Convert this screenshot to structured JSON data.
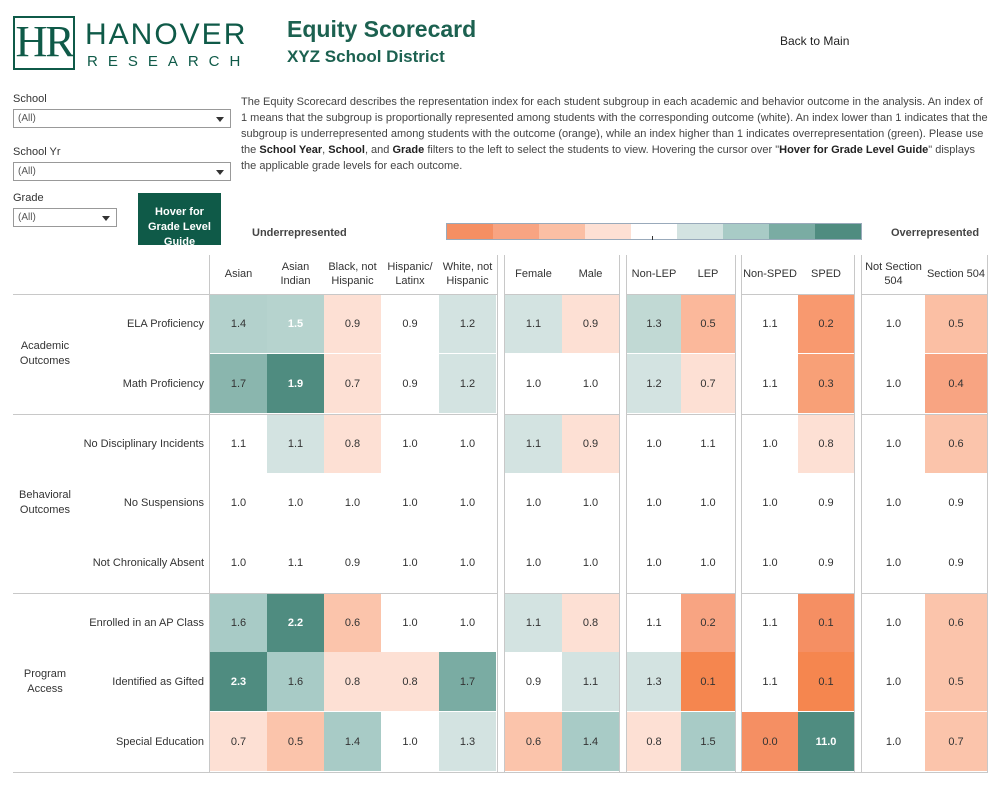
{
  "logo": {
    "letters": "HR",
    "word1": "HANOVER",
    "word2": "RESEARCH"
  },
  "header": {
    "title": "Equity Scorecard",
    "subtitle": "XYZ School District",
    "back_link": "Back to Main"
  },
  "filters": {
    "school": {
      "label": "School",
      "value": "(All)"
    },
    "school_yr": {
      "label": "School Yr",
      "value": "(All)"
    },
    "grade": {
      "label": "Grade",
      "value": "(All)"
    }
  },
  "grade_guide_button": "Hover for Grade Level Guide",
  "description": {
    "part1": "The Equity Scorecard describes the representation index for each student subgroup in each academic and behavior outcome in the analysis. An index of 1 means that the subgroup is proportionally represented among students with the corresponding outcome (white). An index lower than 1 indicates that the subgroup is underrepresented among students with the outcome (orange), while an index higher than 1 indicates overrepresentation (green). Please use the ",
    "b1": "School Year",
    "sep1": ", ",
    "b2": "School",
    "sep2": ", and ",
    "b3": "Grade",
    "part2": " filters to the left to select the students to view. Hovering the cursor over \"",
    "b4": "Hover for Grade Level Guide",
    "part3": "\" displays the applicable grade levels for each outcome."
  },
  "legend": {
    "left_label": "Underrepresented",
    "right_label": "Overrepresented",
    "colors": [
      "#f58f63",
      "#f8a482",
      "#fbbfa4",
      "#fde0d4",
      "#ffffff",
      "#d3e3e1",
      "#a8cbc6",
      "#7aaca3",
      "#4f8c80"
    ]
  },
  "columns": [
    "Asian",
    "Asian Indian",
    "Black, not Hispanic",
    "Hispanic/ Latinx",
    "White, not Hispanic",
    "Female",
    "Male",
    "Non-LEP",
    "LEP",
    "Non-SPED",
    "SPED",
    "Not Section 504",
    "Section 504"
  ],
  "groups": [
    {
      "label": "Academic Outcomes",
      "rows": [
        {
          "label": "ELA Proficiency",
          "values": [
            "1.4",
            "1.5",
            "0.9",
            "0.9",
            "1.2",
            "1.1",
            "0.9",
            "1.3",
            "0.5",
            "1.1",
            "0.2",
            "1.0",
            "0.5"
          ]
        },
        {
          "label": "Math Proficiency",
          "values": [
            "1.7",
            "1.9",
            "0.7",
            "0.9",
            "1.2",
            "1.0",
            "1.0",
            "1.2",
            "0.7",
            "1.1",
            "0.3",
            "1.0",
            "0.4"
          ]
        }
      ]
    },
    {
      "label": "Behavioral Outcomes",
      "rows": [
        {
          "label": "No Disciplinary Incidents",
          "values": [
            "1.1",
            "1.1",
            "0.8",
            "1.0",
            "1.0",
            "1.1",
            "0.9",
            "1.0",
            "1.1",
            "1.0",
            "0.8",
            "1.0",
            "0.6"
          ]
        },
        {
          "label": "No Suspensions",
          "values": [
            "1.0",
            "1.0",
            "1.0",
            "1.0",
            "1.0",
            "1.0",
            "1.0",
            "1.0",
            "1.0",
            "1.0",
            "0.9",
            "1.0",
            "0.9"
          ]
        },
        {
          "label": "Not Chronically Absent",
          "values": [
            "1.0",
            "1.1",
            "0.9",
            "1.0",
            "1.0",
            "1.0",
            "1.0",
            "1.0",
            "1.0",
            "1.0",
            "0.9",
            "1.0",
            "0.9"
          ]
        }
      ]
    },
    {
      "label": "Program Access",
      "rows": [
        {
          "label": "Enrolled in an AP Class",
          "values": [
            "1.6",
            "2.2",
            "0.6",
            "1.0",
            "1.0",
            "1.1",
            "0.8",
            "1.1",
            "0.2",
            "1.1",
            "0.1",
            "1.0",
            "0.6"
          ]
        },
        {
          "label": "Identified as Gifted",
          "values": [
            "2.3",
            "1.6",
            "0.8",
            "0.8",
            "1.7",
            "0.9",
            "1.1",
            "1.3",
            "0.1",
            "1.1",
            "0.1",
            "1.0",
            "0.5"
          ]
        },
        {
          "label": "Special Education",
          "values": [
            "0.7",
            "0.5",
            "1.4",
            "1.0",
            "1.3",
            "0.6",
            "1.4",
            "0.8",
            "1.5",
            "0.0",
            "11.0",
            "1.0",
            "0.7"
          ]
        }
      ]
    }
  ],
  "cell_colors": [
    [
      "#b3d1cc",
      "#b6d3ce",
      "#fde0d4",
      "#ffffff",
      "#d3e3e1",
      "#d3e3e1",
      "#fde0d4",
      "#c1d9d4",
      "#fbb89b",
      "#ffffff",
      "#f8996f",
      "#ffffff",
      "#fbbfa4"
    ],
    [
      "#8ab6ae",
      "#4f8c80",
      "#fde0d4",
      "#ffffff",
      "#d3e3e1",
      "#ffffff",
      "#ffffff",
      "#d3e3e1",
      "#fde0d4",
      "#ffffff",
      "#f8a077",
      "#ffffff",
      "#f8a482"
    ],
    [
      "#ffffff",
      "#d3e3e1",
      "#fde0d4",
      "#ffffff",
      "#ffffff",
      "#d3e3e1",
      "#fde0d4",
      "#ffffff",
      "#ffffff",
      "#ffffff",
      "#fde0d4",
      "#ffffff",
      "#fbc4ab"
    ],
    [
      "#ffffff",
      "#ffffff",
      "#ffffff",
      "#ffffff",
      "#ffffff",
      "#ffffff",
      "#ffffff",
      "#ffffff",
      "#ffffff",
      "#ffffff",
      "#ffffff",
      "#ffffff",
      "#ffffff"
    ],
    [
      "#ffffff",
      "#ffffff",
      "#ffffff",
      "#ffffff",
      "#ffffff",
      "#ffffff",
      "#ffffff",
      "#ffffff",
      "#ffffff",
      "#ffffff",
      "#ffffff",
      "#ffffff",
      "#ffffff"
    ],
    [
      "#a8cbc6",
      "#4f8c80",
      "#fbc4ab",
      "#ffffff",
      "#ffffff",
      "#d3e3e1",
      "#fde0d4",
      "#ffffff",
      "#f8a482",
      "#ffffff",
      "#f58f63",
      "#ffffff",
      "#fbc4ab"
    ],
    [
      "#4f8c80",
      "#a8cbc6",
      "#fde0d4",
      "#fde0d4",
      "#7aaca3",
      "#ffffff",
      "#d3e3e1",
      "#d3e3e1",
      "#f5864f",
      "#ffffff",
      "#f5864f",
      "#ffffff",
      "#fbc4ab"
    ],
    [
      "#fde0d4",
      "#fbc4ab",
      "#a8cbc6",
      "#ffffff",
      "#d3e3e1",
      "#fbc4ab",
      "#a8cbc6",
      "#fde0d4",
      "#a8cbc6",
      "#f58f63",
      "#4f8c80",
      "#ffffff",
      "#fbc4ab"
    ]
  ],
  "dark_cells": [
    "0-1",
    "5-1",
    "6-0",
    "7-10",
    "1-1"
  ]
}
